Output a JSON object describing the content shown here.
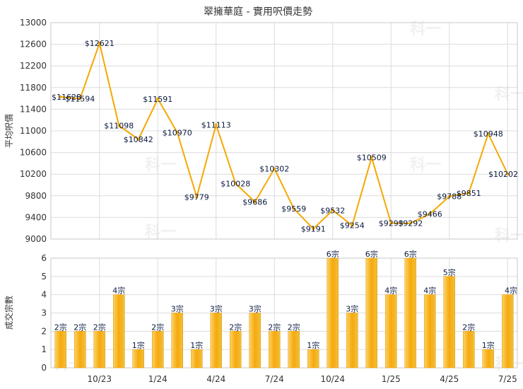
{
  "chart_data": [
    {
      "type": "line",
      "title": "翠擁華庭 - 實用呎價走勢",
      "ylabel": "平均呎價",
      "ylim": [
        9000,
        13000
      ],
      "yticks": [
        9000,
        9400,
        9800,
        10200,
        10600,
        11000,
        11400,
        11800,
        12200,
        12600,
        13000
      ],
      "grid": true,
      "color": "#f5a800",
      "values": [
        11628,
        11594,
        12621,
        11098,
        10842,
        11591,
        10970,
        9779,
        11113,
        10028,
        9686,
        10302,
        9559,
        9191,
        9532,
        9254,
        10509,
        9293,
        9292,
        9466,
        9788,
        9851,
        10948,
        10202
      ],
      "data_labels": [
        "$11628",
        "$11594",
        "$12621",
        "$11098",
        "$10842",
        "$11591",
        "$10970",
        "$9779",
        "$11113",
        "$10028",
        "$9686",
        "$10302",
        "$9559",
        "$9191",
        "$9532",
        "$9254",
        "$10509",
        "$9293",
        "$9292",
        "$9466",
        "$9788",
        "$9851",
        "$10948",
        "$10202"
      ]
    },
    {
      "type": "bar",
      "ylabel": "成交宗數",
      "ylim": [
        0,
        6
      ],
      "yticks": [
        0,
        1,
        2,
        3,
        4,
        5,
        6
      ],
      "grid": true,
      "color": "#f5b21c",
      "values": [
        2,
        2,
        2,
        4,
        1,
        2,
        3,
        1,
        3,
        2,
        3,
        2,
        2,
        1,
        6,
        3,
        6,
        4,
        6,
        4,
        5,
        2,
        1,
        4
      ],
      "data_labels": [
        "2宗",
        "2宗",
        "2宗",
        "4宗",
        "1宗",
        "2宗",
        "3宗",
        "1宗",
        "3宗",
        "2宗",
        "3宗",
        "2宗",
        "2宗",
        "1宗",
        "6宗",
        "3宗",
        "6宗",
        "4宗",
        "6宗",
        "4宗",
        "5宗",
        "2宗",
        "1宗",
        "4宗"
      ],
      "x_tick_labels": [
        {
          "index": 2.5,
          "label": "10/23"
        },
        {
          "index": 5.5,
          "label": "1/24"
        },
        {
          "index": 8.5,
          "label": "4/24"
        },
        {
          "index": 11.5,
          "label": "7/24"
        },
        {
          "index": 14.5,
          "label": "10/24"
        },
        {
          "index": 17.5,
          "label": "1/25"
        },
        {
          "index": 20.5,
          "label": "4/25"
        },
        {
          "index": 23.5,
          "label": "7/25"
        }
      ]
    }
  ],
  "watermark": "科一"
}
